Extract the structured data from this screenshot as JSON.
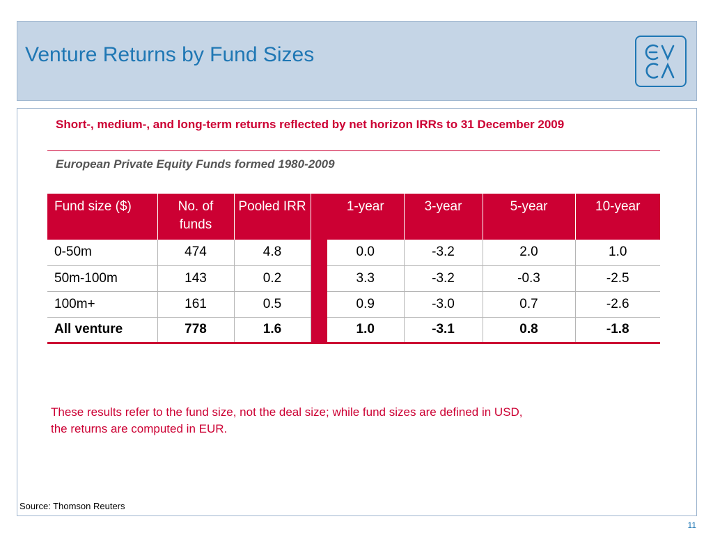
{
  "slide": {
    "title": "Venture Returns by Fund Sizes",
    "subtitle": "Short-, medium-, and long-term returns reflected by net horizon IRRs to 31 December 2009",
    "caption": "European Private Equity Funds formed 1980-2009",
    "note": "These results refer to the fund size, not the deal size; while fund sizes are defined in USD, the returns are computed in EUR.",
    "source": "Source: Thomson Reuters",
    "page_number": "11",
    "logo_text": "EVCA"
  },
  "table": {
    "headers": [
      "Fund size ($)",
      "No. of funds",
      "Pooled IRR",
      "1-year",
      "3-year",
      "5-year",
      "10-year"
    ],
    "rows": [
      [
        "0-50m",
        "474",
        "4.8",
        "0.0",
        "-3.2",
        "2.0",
        "1.0"
      ],
      [
        "50m-100m",
        "143",
        "0.2",
        "3.3",
        "-3.2",
        "-0.3",
        "-2.5"
      ],
      [
        "100m+",
        "161",
        "0.5",
        "0.9",
        "-3.0",
        "0.7",
        "-2.6"
      ],
      [
        "All venture",
        "778",
        "1.6",
        "1.0",
        "-3.1",
        "0.8",
        "-1.8"
      ]
    ]
  },
  "colors": {
    "accent": "#cc0033",
    "title_blue": "#1f77b4",
    "header_band": "#c5d5e6"
  }
}
